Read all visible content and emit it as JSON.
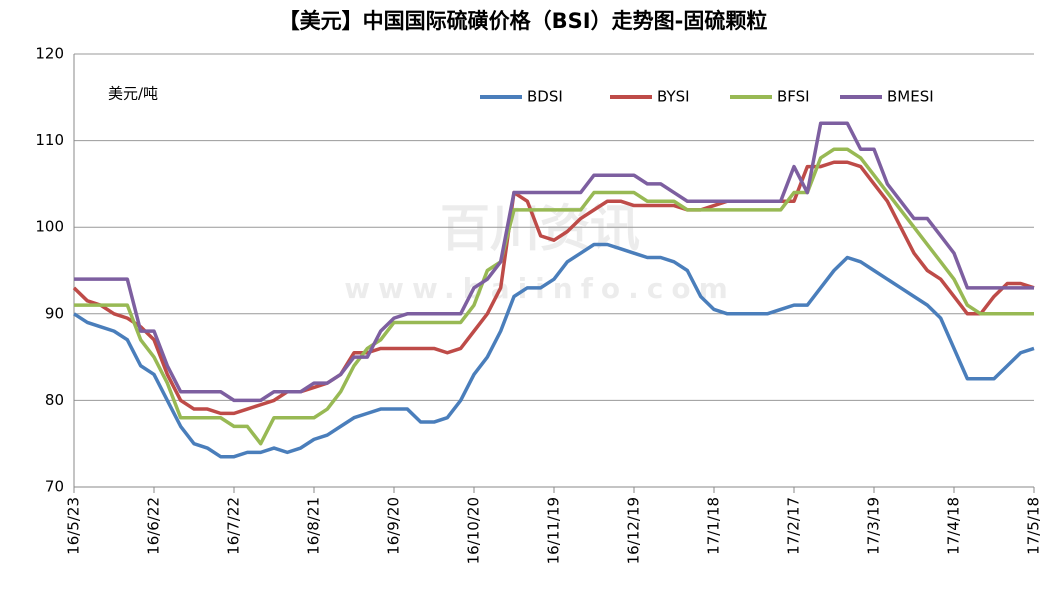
{
  "chart_data": {
    "type": "line",
    "title": "【美元】中国国际硫磺价格（BSI）走势图-固硫颗粒",
    "y_label": "美元/吨",
    "watermark": [
      "百川资讯",
      "www.baiinfo.com"
    ],
    "categories": [
      "16/5/23",
      null,
      null,
      null,
      null,
      null,
      "16/6/22",
      null,
      null,
      null,
      null,
      null,
      "16/7/22",
      null,
      null,
      null,
      null,
      null,
      "16/8/21",
      null,
      null,
      null,
      null,
      null,
      "16/9/20",
      null,
      null,
      null,
      null,
      null,
      "16/10/20",
      null,
      null,
      null,
      null,
      null,
      "16/11/19",
      null,
      null,
      null,
      null,
      null,
      "16/12/19",
      null,
      null,
      null,
      null,
      null,
      "17/1/18",
      null,
      null,
      null,
      null,
      null,
      "17/2/17",
      null,
      null,
      null,
      null,
      null,
      "17/3/19",
      null,
      null,
      null,
      null,
      null,
      "17/4/18",
      null,
      null,
      null,
      null,
      null,
      "17/5/18"
    ],
    "series": [
      {
        "name": "BDSI",
        "color": "#4a7ebb",
        "values": [
          90,
          89,
          88.5,
          88,
          87,
          84,
          83,
          80,
          77,
          75,
          74.5,
          73.5,
          73.5,
          74,
          74,
          74.5,
          74,
          74.5,
          75.5,
          76,
          77,
          78,
          78.5,
          79,
          79,
          79,
          77.5,
          77.5,
          78,
          80,
          83,
          85,
          88,
          92,
          93,
          93,
          94,
          96,
          97,
          98,
          98,
          97.5,
          97,
          96.5,
          96.5,
          96,
          95,
          92,
          90.5,
          90,
          90,
          90,
          90,
          90.5,
          91,
          91,
          93,
          95,
          96.5,
          96,
          95,
          94,
          93,
          92,
          91,
          89.5,
          86,
          82.5,
          82.5,
          82.5,
          84,
          85.5,
          86
        ]
      },
      {
        "name": "BYSI",
        "color": "#be4b48",
        "values": [
          93,
          91.5,
          91,
          90,
          89.5,
          88.5,
          87,
          83,
          80,
          79,
          79,
          78.5,
          78.5,
          79,
          79.5,
          80,
          81,
          81,
          81.5,
          82,
          83,
          85.5,
          85.5,
          86,
          86,
          86,
          86,
          86,
          85.5,
          86,
          88,
          90,
          93,
          104,
          103,
          99,
          98.5,
          99.5,
          101,
          102,
          103,
          103,
          102.5,
          102.5,
          102.5,
          102.5,
          102,
          102,
          102.5,
          103,
          103,
          103,
          103,
          103,
          103,
          107,
          107,
          107.5,
          107.5,
          107,
          105,
          103,
          100,
          97,
          95,
          94,
          92,
          90,
          90,
          92,
          93.5,
          93.5,
          93
        ]
      },
      {
        "name": "BFSI",
        "color": "#98b954",
        "values": [
          91,
          91,
          91,
          91,
          91,
          87,
          85,
          82,
          78,
          78,
          78,
          78,
          77,
          77,
          75,
          78,
          78,
          78,
          78,
          79,
          81,
          84,
          86,
          87,
          89,
          89,
          89,
          89,
          89,
          89,
          91,
          95,
          96,
          102,
          102,
          102,
          102,
          102,
          102,
          104,
          104,
          104,
          104,
          103,
          103,
          103,
          102,
          102,
          102,
          102,
          102,
          102,
          102,
          102,
          104,
          104,
          108,
          109,
          109,
          108,
          106,
          104,
          102,
          100,
          98,
          96,
          94,
          91,
          90,
          90,
          90,
          90,
          90
        ]
      },
      {
        "name": "BMESI",
        "color": "#7d5fa0",
        "values": [
          94,
          94,
          94,
          94,
          94,
          88,
          88,
          84,
          81,
          81,
          81,
          81,
          80,
          80,
          80,
          81,
          81,
          81,
          82,
          82,
          83,
          85,
          85,
          88,
          89.5,
          90,
          90,
          90,
          90,
          90,
          93,
          94,
          96,
          104,
          104,
          104,
          104,
          104,
          104,
          106,
          106,
          106,
          106,
          105,
          105,
          104,
          103,
          103,
          103,
          103,
          103,
          103,
          103,
          103,
          107,
          104,
          112,
          112,
          112,
          109,
          109,
          105,
          103,
          101,
          101,
          99,
          97,
          93,
          93,
          93,
          93,
          93,
          93
        ]
      }
    ],
    "ylim": [
      70,
      120
    ],
    "yticks": [
      70,
      80,
      90,
      100,
      110,
      120
    ],
    "grid": true,
    "legend": "top-right"
  }
}
